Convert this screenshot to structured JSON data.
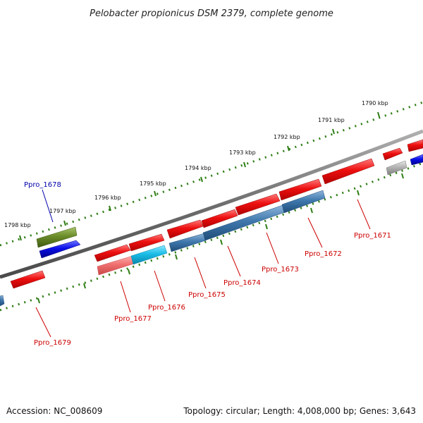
{
  "title": "Pelobacter propionicus DSM 2379, complete genome",
  "footer": {
    "accession": "Accession: NC_008609",
    "summary": "Topology: circular; Length: 4,008,000 bp; Genes: 3,643"
  },
  "colors": {
    "backbone": "#7a7a7a",
    "tick": "#2e7d14",
    "gene_red": "#e81010",
    "gene_blue": "#0a10e8",
    "gene_olive": "#6b8c2a",
    "gene_steel": "#3f78ad",
    "gene_cyan": "#19bde8",
    "gene_pink": "#f07070",
    "gene_gray": "#b4b4b4",
    "label_red": "#cc0000",
    "label_blue": "#0000aa"
  },
  "kbp_labels": [
    "1798 kbp",
    "1797 kbp",
    "1796 kbp",
    "1795 kbp",
    "1794 kbp",
    "1793 kbp",
    "1792 kbp",
    "1791 kbp",
    "1790 kbp"
  ],
  "gene_labels": [
    {
      "id": "ppro-1678",
      "text": "Ppro_1678",
      "color": "blue"
    },
    {
      "id": "ppro-1679",
      "text": "Ppro_1679",
      "color": "red"
    },
    {
      "id": "ppro-1677",
      "text": "Ppro_1677",
      "color": "red"
    },
    {
      "id": "ppro-1676",
      "text": "Ppro_1676",
      "color": "red"
    },
    {
      "id": "ppro-1675",
      "text": "Ppro_1675",
      "color": "red"
    },
    {
      "id": "ppro-1674",
      "text": "Ppro_1674",
      "color": "red"
    },
    {
      "id": "ppro-1673",
      "text": "Ppro_1673",
      "color": "red"
    },
    {
      "id": "ppro-1672",
      "text": "Ppro_1672",
      "color": "red"
    },
    {
      "id": "ppro-1671",
      "text": "Ppro_1671",
      "color": "red"
    }
  ]
}
